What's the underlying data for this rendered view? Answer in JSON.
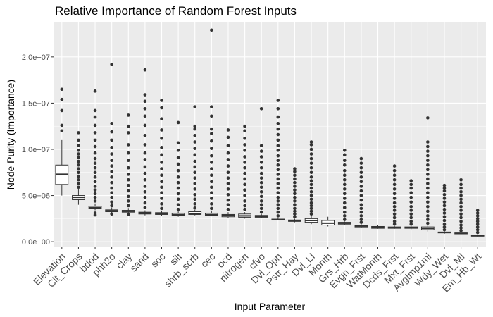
{
  "chart_data": {
    "type": "boxplot",
    "title": "Relative Importance of Random Forest Inputs",
    "xlabel": "Input Parameter",
    "ylabel": "Node Purity (Importance)",
    "ylim": [
      -600000,
      23800000
    ],
    "yticks": [
      {
        "value": 0,
        "label": "0.0e+00"
      },
      {
        "value": 5000000,
        "label": "5.0e+06"
      },
      {
        "value": 10000000,
        "label": "1.0e+07"
      },
      {
        "value": 15000000,
        "label": "1.5e+07"
      },
      {
        "value": 20000000,
        "label": "2.0e+07"
      }
    ],
    "grid": true,
    "legend": "none",
    "colors": {
      "panel": "#ebebeb",
      "grid_major": "#ffffff",
      "box_fill": "#ffffff",
      "box_line": "#333333",
      "point": "#333333"
    },
    "series": [
      {
        "name": "Elevation",
        "whisker_low": 5000000,
        "q1": 6200000,
        "median": 7300000,
        "q3": 8300000,
        "whisker_high": 11000000,
        "outliers": [
          12000000,
          12600000,
          14200000,
          15400000,
          16500000
        ]
      },
      {
        "name": "Clt_Crops",
        "whisker_low": 4000000,
        "q1": 4550000,
        "median": 4800000,
        "q3": 5000000,
        "whisker_high": 5650000,
        "outliers": [
          5900000,
          6300000,
          6700000,
          7100000,
          7500000,
          7900000,
          8300000,
          8700000,
          9100000,
          9500000,
          9900000,
          10400000,
          11000000,
          11800000
        ]
      },
      {
        "name": "bdod",
        "whisker_low": 3400000,
        "q1": 3600000,
        "median": 3700000,
        "q3": 3850000,
        "whisker_high": 4150000,
        "outliers": [
          2900000,
          3100000,
          4400000,
          4800000,
          5200000,
          5600000,
          6000000,
          6500000,
          7000000,
          7500000,
          8000000,
          8500000,
          9000000,
          9600000,
          10300000,
          11000000,
          11800000,
          12600000,
          13500000,
          14200000,
          16300000
        ]
      },
      {
        "name": "phh2o",
        "whisker_low": 3100000,
        "q1": 3250000,
        "median": 3350000,
        "q3": 3450000,
        "whisker_high": 3700000,
        "outliers": [
          3000000,
          3900000,
          4300000,
          4800000,
          5300000,
          5800000,
          6400000,
          7000000,
          7600000,
          8200000,
          8800000,
          9500000,
          10200000,
          11000000,
          11900000,
          12800000,
          19200000
        ]
      },
      {
        "name": "clay",
        "whisker_low": 3050000,
        "q1": 3200000,
        "median": 3300000,
        "q3": 3400000,
        "whisker_high": 3650000,
        "outliers": [
          2950000,
          3900000,
          4400000,
          4900000,
          5500000,
          6100000,
          6700000,
          7300000,
          8000000,
          8800000,
          9600000,
          10500000,
          11800000,
          12500000,
          13700000
        ]
      },
      {
        "name": "sand",
        "whisker_low": 2850000,
        "q1": 3000000,
        "median": 3100000,
        "q3": 3200000,
        "whisker_high": 3400000,
        "outliers": [
          3700000,
          4200000,
          4800000,
          5400000,
          6000000,
          6700000,
          7400000,
          8100000,
          8900000,
          9600000,
          10500000,
          11500000,
          12600000,
          13600000,
          14400000,
          15200000,
          15900000,
          18600000
        ]
      },
      {
        "name": "soc",
        "whisker_low": 2800000,
        "q1": 2950000,
        "median": 3050000,
        "q3": 3150000,
        "whisker_high": 3350000,
        "outliers": [
          3600000,
          4100000,
          4700000,
          5300000,
          5900000,
          6500000,
          7200000,
          7900000,
          8600000,
          9400000,
          10200000,
          11200000,
          12100000,
          13300000,
          14500000,
          15300000
        ]
      },
      {
        "name": "silt",
        "whisker_low": 2700000,
        "q1": 2850000,
        "median": 2950000,
        "q3": 3100000,
        "whisker_high": 3300000,
        "outliers": [
          3500000,
          4000000,
          4600000,
          5200000,
          5800000,
          6400000,
          7000000,
          7700000,
          8400000,
          9100000,
          9900000,
          10700000,
          12900000
        ]
      },
      {
        "name": "shrb_scrb",
        "whisker_low": 2850000,
        "q1": 2950000,
        "median": 3050000,
        "q3": 3250000,
        "whisker_high": 3450000,
        "outliers": [
          3650000,
          4100000,
          4600000,
          5100000,
          5700000,
          6300000,
          6900000,
          7500000,
          8100000,
          8700000,
          9400000,
          10100000,
          10800000,
          11500000,
          12200000,
          12500000,
          14600000
        ]
      },
      {
        "name": "cec",
        "whisker_low": 2750000,
        "q1": 2850000,
        "median": 2950000,
        "q3": 3100000,
        "whisker_high": 3350000,
        "outliers": [
          3600000,
          4100000,
          4700000,
          5300000,
          5900000,
          6500000,
          7200000,
          7900000,
          8600000,
          9300000,
          10100000,
          10900000,
          11700000,
          12200000,
          13600000,
          14600000,
          22900000
        ]
      },
      {
        "name": "ocd",
        "whisker_low": 2600000,
        "q1": 2700000,
        "median": 2850000,
        "q3": 2950000,
        "whisker_high": 3200000,
        "outliers": [
          3500000,
          4000000,
          4500000,
          5100000,
          5700000,
          6300000,
          6900000,
          7500000,
          8200000,
          8900000,
          9600000,
          10400000,
          11300000,
          12100000
        ]
      },
      {
        "name": "nitrogen",
        "whisker_low": 2500000,
        "q1": 2650000,
        "median": 2800000,
        "q3": 3000000,
        "whisker_high": 3200000,
        "outliers": [
          3500000,
          3900000,
          4400000,
          5000000,
          5600000,
          6200000,
          6800000,
          7400000,
          8000000,
          8600000,
          9200000,
          9900000,
          10500000,
          11200000,
          12000000,
          12500000
        ]
      },
      {
        "name": "cfvo",
        "whisker_low": 2550000,
        "q1": 2650000,
        "median": 2750000,
        "q3": 2850000,
        "whisker_high": 3000000,
        "outliers": [
          3200000,
          3600000,
          4000000,
          4400000,
          4900000,
          5400000,
          5900000,
          6400000,
          6900000,
          7400000,
          8000000,
          8600000,
          9200000,
          9800000,
          10400000,
          14400000
        ]
      },
      {
        "name": "Dvl_Opn",
        "whisker_low": 2300000,
        "q1": 2350000,
        "median": 2400000,
        "q3": 2450000,
        "whisker_high": 2550000,
        "outliers": [
          2800000,
          3200000,
          3600000,
          4000000,
          4400000,
          4800000,
          5300000,
          5800000,
          6300000,
          6800000,
          7300000,
          7800000,
          8300000,
          8800000,
          9300000,
          9900000,
          10400000,
          11000000,
          11600000,
          12200000,
          12800000,
          13500000,
          14400000,
          15300000
        ]
      },
      {
        "name": "Pstr_Hay",
        "whisker_low": 2100000,
        "q1": 2200000,
        "median": 2250000,
        "q3": 2350000,
        "whisker_high": 2500000,
        "outliers": [
          2700000,
          3000000,
          3300000,
          3600000,
          4000000,
          4400000,
          4800000,
          5200000,
          5600000,
          6000000,
          6400000,
          6800000,
          7200000,
          7600000,
          7900000
        ]
      },
      {
        "name": "Dvl_LI",
        "whisker_low": 1900000,
        "q1": 2100000,
        "median": 2300000,
        "q3": 2500000,
        "whisker_high": 2800000,
        "outliers": [
          3000000,
          3300000,
          3600000,
          3900000,
          4200000,
          4600000,
          5000000,
          5400000,
          5800000,
          6200000,
          6600000,
          7000000,
          7500000,
          8000000,
          8500000,
          9000000,
          9500000,
          10000000,
          10500000,
          10800000
        ]
      },
      {
        "name": "Month",
        "whisker_low": 1650000,
        "q1": 1800000,
        "median": 2000000,
        "q3": 2300000,
        "whisker_high": 2700000,
        "outliers": []
      },
      {
        "name": "Grs_Hrb",
        "whisker_low": 1800000,
        "q1": 1900000,
        "median": 2000000,
        "q3": 2100000,
        "whisker_high": 2200000,
        "outliers": [
          2400000,
          2800000,
          3200000,
          3700000,
          4200000,
          4700000,
          5200000,
          5700000,
          6200000,
          6700000,
          7200000,
          7700000,
          8300000,
          8800000,
          9400000,
          9900000
        ]
      },
      {
        "name": "Evgn_Frst",
        "whisker_low": 1500000,
        "q1": 1600000,
        "median": 1700000,
        "q3": 1800000,
        "whisker_high": 1950000,
        "outliers": [
          2100000,
          2400000,
          2800000,
          3200000,
          3600000,
          4000000,
          4500000,
          5000000,
          5500000,
          6000000,
          6500000,
          7000000,
          7500000,
          8000000,
          8500000,
          9000000
        ]
      },
      {
        "name": "WatMonth",
        "whisker_low": 1400000,
        "q1": 1450000,
        "median": 1550000,
        "q3": 1650000,
        "whisker_high": 1800000,
        "outliers": []
      },
      {
        "name": "Dcds_Frst",
        "whisker_low": 1400000,
        "q1": 1450000,
        "median": 1500000,
        "q3": 1600000,
        "whisker_high": 1700000,
        "outliers": [
          1900000,
          2200000,
          2600000,
          3000000,
          3400000,
          3800000,
          4200000,
          4700000,
          5200000,
          5700000,
          6200000,
          6700000,
          7200000,
          7700000,
          8200000
        ]
      },
      {
        "name": "Mxt_Frst",
        "whisker_low": 1350000,
        "q1": 1450000,
        "median": 1500000,
        "q3": 1600000,
        "whisker_high": 1700000,
        "outliers": [
          1900000,
          2200000,
          2600000,
          3000000,
          3400000,
          3800000,
          4300000,
          4800000,
          5300000,
          5800000,
          6200000,
          6600000
        ]
      },
      {
        "name": "AvgImp1mi",
        "whisker_low": 1100000,
        "q1": 1300000,
        "median": 1450000,
        "q3": 1600000,
        "whisker_high": 1800000,
        "outliers": [
          2000000,
          2400000,
          2800000,
          3300000,
          3800000,
          4300000,
          4800000,
          5300000,
          5800000,
          6300000,
          6800000,
          7300000,
          7800000,
          8300000,
          8800000,
          9300000,
          9800000,
          10300000,
          10800000,
          13400000
        ]
      },
      {
        "name": "Wdy_Wet",
        "whisker_low": 850000,
        "q1": 950000,
        "median": 1000000,
        "q3": 1050000,
        "whisker_high": 1150000,
        "outliers": [
          1300000,
          1600000,
          1900000,
          2300000,
          2700000,
          3100000,
          3500000,
          3900000,
          4300000,
          4700000,
          5100000,
          5500000,
          5800000,
          6100000
        ]
      },
      {
        "name": "Dvl_MI",
        "whisker_low": 800000,
        "q1": 850000,
        "median": 900000,
        "q3": 950000,
        "whisker_high": 1050000,
        "outliers": [
          1200000,
          1500000,
          1800000,
          2200000,
          2600000,
          3000000,
          3400000,
          3800000,
          4200000,
          4600000,
          5000000,
          5400000,
          5800000,
          6200000,
          6700000
        ]
      },
      {
        "name": "Em_Hb_Wt",
        "whisker_low": 550000,
        "q1": 600000,
        "median": 650000,
        "q3": 700000,
        "whisker_high": 800000,
        "outliers": [
          1000000,
          1300000,
          1600000,
          1900000,
          2200000,
          2500000,
          2800000,
          3100000,
          3400000
        ]
      }
    ]
  }
}
